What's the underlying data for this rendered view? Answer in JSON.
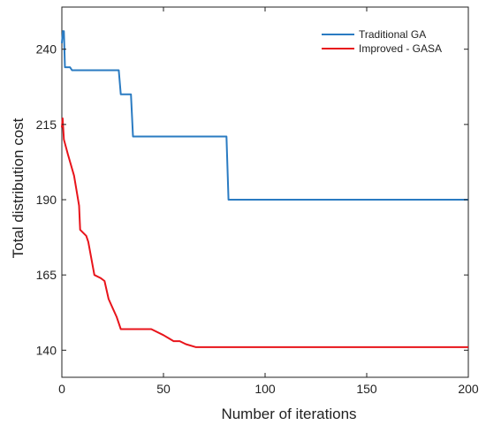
{
  "chart_data": {
    "type": "line",
    "title": "",
    "xlabel": "Number of iterations",
    "ylabel": "Total distribution cost",
    "xlim": [
      0,
      200
    ],
    "ylim": [
      131,
      254
    ],
    "x_ticks": [
      0,
      50,
      100,
      150,
      200
    ],
    "y_ticks": [
      140,
      165,
      190,
      215,
      240
    ],
    "grid": false,
    "legend_position": "top-right",
    "series": [
      {
        "name": "Traditional GA",
        "color": "#2a7bc2",
        "points": [
          [
            0,
            242
          ],
          [
            0.5,
            246
          ],
          [
            1,
            246
          ],
          [
            1.5,
            234
          ],
          [
            4,
            234
          ],
          [
            5,
            233
          ],
          [
            28,
            233
          ],
          [
            29,
            225
          ],
          [
            34,
            225
          ],
          [
            35,
            211
          ],
          [
            81,
            211
          ],
          [
            82,
            190
          ],
          [
            200,
            190
          ]
        ]
      },
      {
        "name": "Improved - GASA",
        "color": "#e8141b",
        "points": [
          [
            0,
            214
          ],
          [
            0.4,
            217
          ],
          [
            1,
            210
          ],
          [
            3,
            205
          ],
          [
            6,
            198
          ],
          [
            7,
            194
          ],
          [
            8.5,
            188
          ],
          [
            9,
            180
          ],
          [
            12,
            178
          ],
          [
            13,
            176
          ],
          [
            16,
            165
          ],
          [
            19,
            164
          ],
          [
            21,
            163
          ],
          [
            23,
            157
          ],
          [
            27,
            151
          ],
          [
            29,
            147
          ],
          [
            44,
            147
          ],
          [
            50,
            145
          ],
          [
            55,
            143
          ],
          [
            58,
            143
          ],
          [
            61,
            142
          ],
          [
            66,
            141
          ],
          [
            200,
            141
          ]
        ]
      }
    ]
  }
}
